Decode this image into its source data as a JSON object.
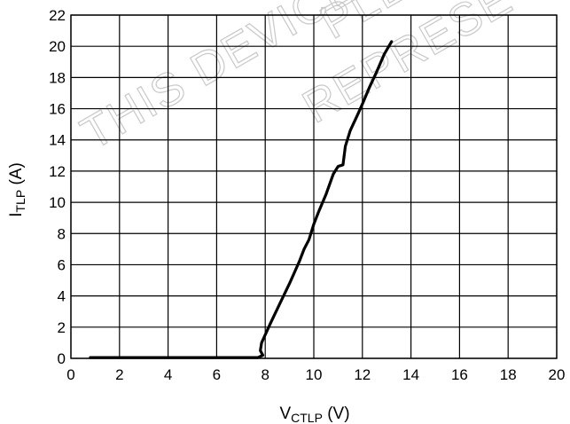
{
  "watermark": {
    "line1": "THIS DEVICE",
    "line2": "PLE",
    "line3": "REPRESE",
    "color": "#c8c8c8"
  },
  "chart_data": {
    "type": "line",
    "title": "",
    "xlabel_main": "V",
    "xlabel_sub": "CTLP",
    "xlabel_unit": " (V)",
    "ylabel_main": "I",
    "ylabel_sub": "TLP",
    "ylabel_unit": " (A)",
    "xlim": [
      0,
      20
    ],
    "ylim": [
      0,
      22
    ],
    "xticks": [
      0,
      2,
      4,
      6,
      8,
      10,
      12,
      14,
      16,
      18,
      20
    ],
    "yticks": [
      0,
      2,
      4,
      6,
      8,
      10,
      12,
      14,
      16,
      18,
      20,
      22
    ],
    "grid": true,
    "series": [
      {
        "color": "#000000",
        "x": [
          0.8,
          4.0,
          7.0,
          7.7,
          7.9,
          7.8,
          7.85,
          8.2,
          8.6,
          9.0,
          9.4,
          9.6,
          9.8,
          10.0,
          10.2,
          10.5,
          10.8,
          11.0,
          11.2,
          11.3,
          11.5,
          11.8,
          12.0,
          12.3,
          12.6,
          12.9,
          13.2
        ],
        "y": [
          0.05,
          0.05,
          0.05,
          0.05,
          0.2,
          0.5,
          1.0,
          2.2,
          3.5,
          4.8,
          6.2,
          7.0,
          7.6,
          8.6,
          9.4,
          10.5,
          11.8,
          12.3,
          12.4,
          13.6,
          14.6,
          15.6,
          16.3,
          17.4,
          18.4,
          19.5,
          20.3
        ]
      }
    ]
  }
}
